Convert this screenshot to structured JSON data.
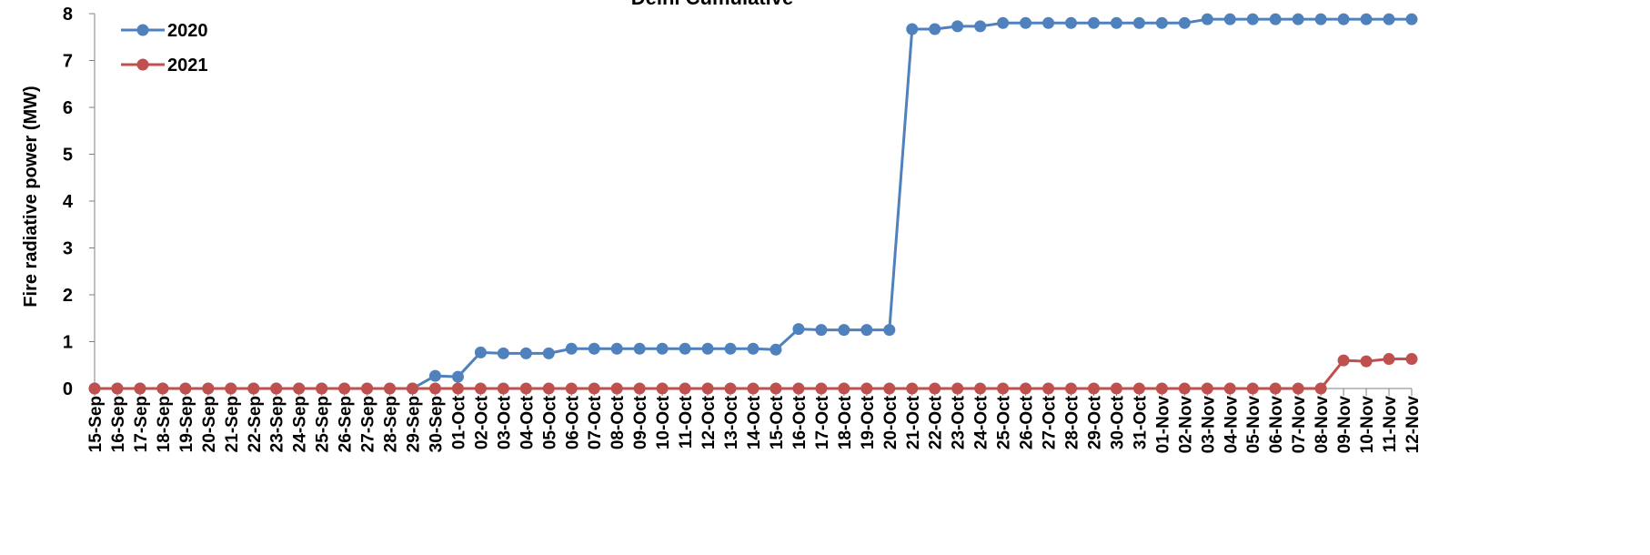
{
  "chart_data": {
    "type": "line",
    "title": "Delhi Cumulative",
    "xlabel": "",
    "ylabel": "Fire radiative power (MW)",
    "ylim": [
      0,
      8
    ],
    "yticks": [
      0,
      1,
      2,
      3,
      4,
      5,
      6,
      7,
      8
    ],
    "grid": false,
    "legend_position": "top-left",
    "categories": [
      "15-Sep",
      "16-Sep",
      "17-Sep",
      "18-Sep",
      "19-Sep",
      "20-Sep",
      "21-Sep",
      "22-Sep",
      "23-Sep",
      "24-Sep",
      "25-Sep",
      "26-Sep",
      "27-Sep",
      "28-Sep",
      "29-Sep",
      "30-Sep",
      "01-Oct",
      "02-Oct",
      "03-Oct",
      "04-Oct",
      "05-Oct",
      "06-Oct",
      "07-Oct",
      "08-Oct",
      "09-Oct",
      "10-Oct",
      "11-Oct",
      "12-Oct",
      "13-Oct",
      "14-Oct",
      "15-Oct",
      "16-Oct",
      "17-Oct",
      "18-Oct",
      "19-Oct",
      "20-Oct",
      "21-Oct",
      "22-Oct",
      "23-Oct",
      "24-Oct",
      "25-Oct",
      "26-Oct",
      "27-Oct",
      "28-Oct",
      "29-Oct",
      "30-Oct",
      "31-Oct",
      "01-Nov",
      "02-Nov",
      "03-Nov",
      "04-Nov",
      "05-Nov",
      "06-Nov",
      "07-Nov",
      "08-Nov",
      "09-Nov",
      "10-Nov",
      "11-Nov",
      "12-Nov"
    ],
    "series": [
      {
        "name": "2020",
        "color": "#4f81bd",
        "values": [
          0,
          0,
          0,
          0,
          0,
          0,
          0,
          0,
          0,
          0,
          0,
          0,
          0,
          0,
          0,
          0.27,
          0.25,
          0.77,
          0.75,
          0.75,
          0.75,
          0.85,
          0.85,
          0.85,
          0.85,
          0.85,
          0.85,
          0.85,
          0.85,
          0.85,
          0.83,
          1.27,
          1.25,
          1.25,
          1.25,
          1.25,
          7.67,
          7.67,
          7.73,
          7.73,
          7.8,
          7.8,
          7.8,
          7.8,
          7.8,
          7.8,
          7.8,
          7.8,
          7.8,
          7.88,
          7.88,
          7.88,
          7.88,
          7.88,
          7.88,
          7.88,
          7.88,
          7.88,
          7.88
        ]
      },
      {
        "name": "2021",
        "color": "#c0504d",
        "values": [
          0,
          0,
          0,
          0,
          0,
          0,
          0,
          0,
          0,
          0,
          0,
          0,
          0,
          0,
          0,
          0,
          0,
          0,
          0,
          0,
          0,
          0,
          0,
          0,
          0,
          0,
          0,
          0,
          0,
          0,
          0,
          0,
          0,
          0,
          0,
          0,
          0,
          0,
          0,
          0,
          0,
          0,
          0,
          0,
          0,
          0,
          0,
          0,
          0,
          0,
          0,
          0,
          0,
          0,
          0,
          0.6,
          0.58,
          0.63,
          0.63
        ]
      }
    ]
  }
}
